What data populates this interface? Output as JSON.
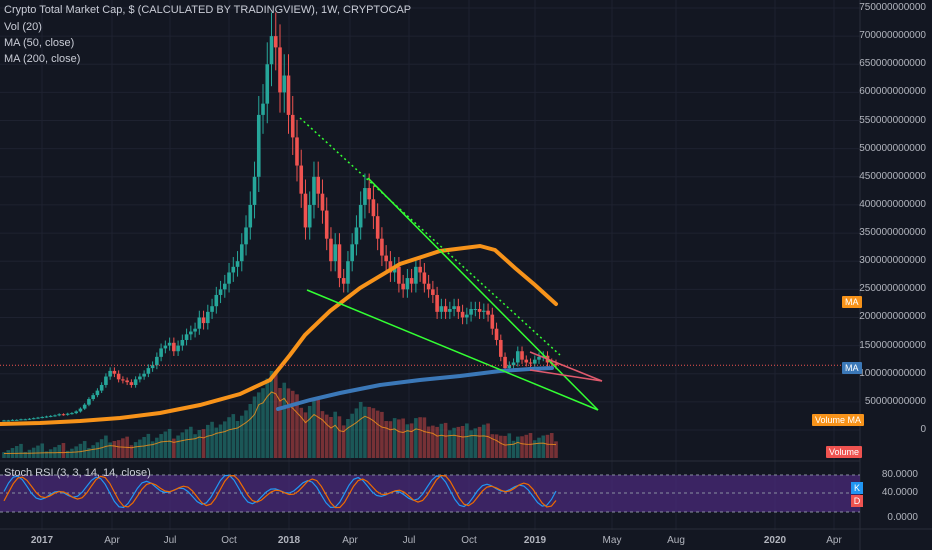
{
  "header": {
    "title": "Crypto Total Market Cap, $ (CALCULATED BY TRADINGVIEW), 1W, CRYPTOCAP",
    "indicators": [
      "Vol (20)",
      "MA (50, close)",
      "MA (200, close)"
    ]
  },
  "oscillator": {
    "title": "Stoch RSI (3, 3, 14, 14, close)",
    "k_label": "K",
    "d_label": "D"
  },
  "tags": {
    "ma_top": "MA",
    "ma_main": "MA",
    "volume_ma": "Volume MA",
    "volume": "Volume"
  },
  "colors": {
    "background": "#131722",
    "up": "#26a69a",
    "down": "#ef5350",
    "ma50": "#f7931a",
    "ma200": "#3b78b8",
    "trendline": "#33ff33",
    "rsi_k": "#2196f3",
    "rsi_d": "#ef6c00",
    "rsi_band": "#4a2a7a"
  },
  "chart_data": {
    "type": "candlestick",
    "y_axis_ticks": [
      "750000000000",
      "700000000000",
      "650000000000",
      "600000000000",
      "550000000000",
      "500000000000",
      "450000000000",
      "400000000000",
      "350000000000",
      "300000000000",
      "250000000000",
      "200000000000",
      "150000000000",
      "100000000000",
      "50000000000",
      "0"
    ],
    "x_axis_ticks": [
      "2017",
      "Apr",
      "Jul",
      "Oct",
      "2018",
      "Apr",
      "Jul",
      "Oct",
      "2019",
      "May",
      "Aug",
      "2020",
      "Apr"
    ],
    "rsi_ticks": [
      "80.0000",
      "40.0000",
      "0.0000"
    ],
    "ylim": [
      0,
      760000000000
    ],
    "price_line": 115000000000
  }
}
